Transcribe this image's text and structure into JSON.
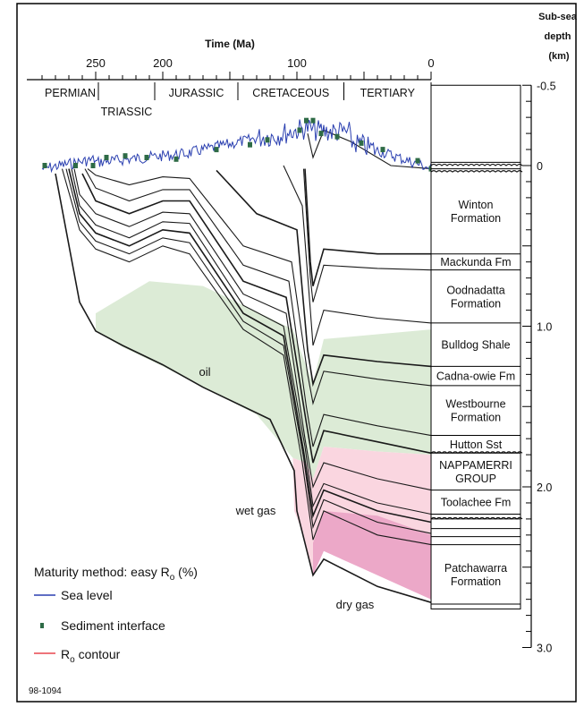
{
  "chart_data": {
    "type": "area",
    "title": "",
    "xlabel": "Time (Ma)",
    "ylabel": "Sub-sea depth (km)",
    "xlim": [
      290,
      0
    ],
    "ylim": [
      -0.5,
      3.0
    ],
    "x_ticks": [
      "250",
      "200",
      "100",
      "0"
    ],
    "x_tick_values": [
      250,
      200,
      100,
      0
    ],
    "y_ticks": [
      "-0.5",
      "0",
      "1.0",
      "2.0",
      "3.0"
    ],
    "y_tick_values": [
      -0.5,
      0,
      1.0,
      2.0,
      3.0
    ],
    "periods": [
      {
        "name": "PERMIAN",
        "start": 290,
        "end": 248
      },
      {
        "name": "TRIASSIC",
        "start": 248,
        "end": 206
      },
      {
        "name": "JURASSIC",
        "start": 206,
        "end": 144
      },
      {
        "name": "CRETACEOUS",
        "start": 144,
        "end": 65
      },
      {
        "name": "TERTIARY",
        "start": 65,
        "end": 0
      }
    ],
    "formations": [
      {
        "name": "Winton Formation",
        "top": 0.02,
        "bottom": 0.55
      },
      {
        "name": "Mackunda Fm",
        "top": 0.55,
        "bottom": 0.65
      },
      {
        "name": "Oodnadatta Formation",
        "top": 0.65,
        "bottom": 0.98
      },
      {
        "name": "Bulldog Shale",
        "top": 0.98,
        "bottom": 1.25
      },
      {
        "name": "Cadna-owie Fm",
        "top": 1.25,
        "bottom": 1.37
      },
      {
        "name": "Westbourne Formation",
        "top": 1.37,
        "bottom": 1.68
      },
      {
        "name": "Hutton Sst",
        "top": 1.68,
        "bottom": 1.79
      },
      {
        "name": "NAPPAMERRI GROUP",
        "top": 1.79,
        "bottom": 2.02
      },
      {
        "name": "Toolachee Fm",
        "top": 2.02,
        "bottom": 2.17
      },
      {
        "name": "Patchawarra Formation",
        "top": 2.36,
        "bottom": 2.73
      }
    ],
    "zones": [
      {
        "name": "oil",
        "color": "#dcebd6"
      },
      {
        "name": "wet gas",
        "color": "#fad6e0"
      },
      {
        "name": "dry gas",
        "color": "#eca8c8"
      }
    ],
    "oil_zone": {
      "top": [
        [
          250,
          0.92
        ],
        [
          210,
          0.72
        ],
        [
          170,
          0.75
        ],
        [
          120,
          0.95
        ],
        [
          103,
          1.02
        ],
        [
          93,
          1.25
        ],
        [
          88,
          1.35
        ],
        [
          80,
          1.08
        ],
        [
          40,
          1.05
        ],
        [
          0,
          1.02
        ]
      ],
      "bottom": [
        [
          250,
          1.03
        ],
        [
          230,
          1.13
        ],
        [
          200,
          1.25
        ],
        [
          170,
          1.38
        ],
        [
          130,
          1.55
        ],
        [
          103,
          1.82
        ],
        [
          93,
          1.85
        ],
        [
          88,
          1.95
        ],
        [
          80,
          1.75
        ],
        [
          40,
          1.78
        ],
        [
          0,
          1.8
        ]
      ]
    },
    "wet_gas_zone": {
      "top": [
        [
          103,
          1.82
        ],
        [
          93,
          1.85
        ],
        [
          88,
          1.95
        ],
        [
          80,
          1.75
        ],
        [
          40,
          1.78
        ],
        [
          0,
          1.8
        ]
      ],
      "bottom": [
        [
          102,
          2.15
        ],
        [
          95,
          2.3
        ],
        [
          88,
          2.55
        ],
        [
          80,
          2.35
        ],
        [
          40,
          2.3
        ],
        [
          0,
          2.3
        ]
      ]
    },
    "dry_gas_zone": {
      "top": [
        [
          88,
          2.35
        ],
        [
          80,
          2.15
        ],
        [
          40,
          2.18
        ],
        [
          0,
          2.3
        ]
      ],
      "bottom": [
        [
          88,
          2.55
        ],
        [
          80,
          2.4
        ],
        [
          40,
          2.55
        ],
        [
          0,
          2.7
        ]
      ]
    },
    "horizons": [
      [
        [
          0,
          2.72
        ],
        [
          40,
          2.62
        ],
        [
          80,
          2.45
        ],
        [
          88,
          2.55
        ],
        [
          100,
          2.15
        ],
        [
          102,
          1.9
        ],
        [
          120,
          1.58
        ],
        [
          170,
          1.38
        ],
        [
          200,
          1.24
        ],
        [
          230,
          1.12
        ],
        [
          250,
          1.03
        ],
        [
          262,
          0.85
        ],
        [
          280,
          0.05
        ]
      ],
      [
        [
          0,
          2.36
        ],
        [
          40,
          2.3
        ],
        [
          80,
          2.15
        ],
        [
          88,
          2.33
        ],
        [
          96,
          1.85
        ],
        [
          110,
          1.18
        ],
        [
          140,
          1.02
        ],
        [
          180,
          0.55
        ],
        [
          200,
          0.5
        ],
        [
          225,
          0.6
        ],
        [
          250,
          0.52
        ],
        [
          262,
          0.4
        ],
        [
          275,
          0.02
        ]
      ],
      [
        [
          0,
          2.29
        ],
        [
          40,
          2.22
        ],
        [
          80,
          2.08
        ],
        [
          88,
          2.25
        ],
        [
          95,
          1.82
        ],
        [
          110,
          1.12
        ],
        [
          140,
          0.97
        ],
        [
          180,
          0.48
        ],
        [
          200,
          0.45
        ],
        [
          225,
          0.55
        ],
        [
          250,
          0.47
        ],
        [
          262,
          0.35
        ],
        [
          272,
          0.02
        ]
      ],
      [
        [
          0,
          2.22
        ],
        [
          40,
          2.15
        ],
        [
          80,
          2.02
        ],
        [
          88,
          2.18
        ],
        [
          95,
          1.78
        ],
        [
          110,
          1.06
        ],
        [
          140,
          0.92
        ],
        [
          180,
          0.42
        ],
        [
          200,
          0.4
        ],
        [
          225,
          0.5
        ],
        [
          250,
          0.42
        ],
        [
          262,
          0.3
        ],
        [
          270,
          0.02
        ]
      ],
      [
        [
          0,
          2.17
        ],
        [
          40,
          2.1
        ],
        [
          80,
          1.98
        ],
        [
          88,
          2.12
        ],
        [
          94,
          1.75
        ],
        [
          110,
          1.0
        ],
        [
          140,
          0.87
        ],
        [
          180,
          0.36
        ],
        [
          200,
          0.35
        ],
        [
          225,
          0.45
        ],
        [
          250,
          0.37
        ],
        [
          262,
          0.25
        ],
        [
          268,
          0.02
        ]
      ],
      [
        [
          0,
          2.02
        ],
        [
          40,
          1.95
        ],
        [
          80,
          1.85
        ],
        [
          88,
          2.0
        ],
        [
          94,
          1.7
        ],
        [
          108,
          0.92
        ],
        [
          140,
          0.8
        ],
        [
          180,
          0.3
        ],
        [
          200,
          0.29
        ],
        [
          225,
          0.38
        ],
        [
          250,
          0.3
        ],
        [
          262,
          0.18
        ],
        [
          266,
          0.02
        ]
      ],
      [
        [
          0,
          1.79
        ],
        [
          40,
          1.72
        ],
        [
          80,
          1.65
        ],
        [
          88,
          1.85
        ],
        [
          93,
          1.6
        ],
        [
          108,
          0.82
        ],
        [
          140,
          0.72
        ],
        [
          180,
          0.22
        ],
        [
          200,
          0.22
        ],
        [
          225,
          0.3
        ],
        [
          250,
          0.22
        ],
        [
          260,
          0.05
        ]
      ],
      [
        [
          0,
          1.68
        ],
        [
          40,
          1.62
        ],
        [
          80,
          1.55
        ],
        [
          88,
          1.75
        ],
        [
          93,
          1.5
        ],
        [
          106,
          0.72
        ],
        [
          140,
          0.62
        ],
        [
          180,
          0.15
        ],
        [
          200,
          0.15
        ],
        [
          225,
          0.22
        ],
        [
          250,
          0.14
        ],
        [
          258,
          0.02
        ]
      ],
      [
        [
          0,
          1.37
        ],
        [
          40,
          1.33
        ],
        [
          80,
          1.28
        ],
        [
          88,
          1.48
        ],
        [
          92,
          1.3
        ],
        [
          104,
          0.6
        ],
        [
          140,
          0.5
        ],
        [
          180,
          0.08
        ],
        [
          200,
          0.07
        ],
        [
          225,
          0.12
        ],
        [
          250,
          0.06
        ],
        [
          256,
          0.02
        ]
      ],
      [
        [
          0,
          1.25
        ],
        [
          40,
          1.22
        ],
        [
          80,
          1.18
        ],
        [
          88,
          1.36
        ],
        [
          92,
          1.15
        ],
        [
          100,
          0.4
        ],
        [
          130,
          0.3
        ],
        [
          160,
          0.03
        ]
      ],
      [
        [
          0,
          0.98
        ],
        [
          40,
          0.95
        ],
        [
          80,
          0.9
        ],
        [
          88,
          1.12
        ],
        [
          90,
          0.9
        ],
        [
          96,
          0.25
        ],
        [
          110,
          0.0
        ]
      ],
      [
        [
          0,
          0.65
        ],
        [
          40,
          0.64
        ],
        [
          80,
          0.62
        ],
        [
          88,
          0.85
        ],
        [
          90,
          0.7
        ],
        [
          95,
          0.02
        ]
      ],
      [
        [
          0,
          0.55
        ],
        [
          40,
          0.55
        ],
        [
          80,
          0.52
        ],
        [
          88,
          0.75
        ],
        [
          90,
          0.6
        ],
        [
          94,
          0.02
        ]
      ],
      [
        [
          0,
          0.02
        ],
        [
          30,
          0.0
        ],
        [
          60,
          -0.15
        ],
        [
          80,
          -0.22
        ],
        [
          88,
          -0.05
        ],
        [
          92,
          -0.2
        ]
      ]
    ],
    "legend": {
      "title": "Maturity method: easy R",
      "title_sub": "o",
      "title_suffix": " (%)",
      "items": [
        {
          "label": "Sea level",
          "kind": "line",
          "color": "#2a3fb0"
        },
        {
          "label": "Sediment interface",
          "kind": "marker",
          "color": "#2e6b46"
        },
        {
          "label": "R",
          "label_sub": "o",
          "label_suffix": " contour",
          "kind": "line",
          "color": "#e8474f"
        }
      ]
    },
    "labels": {
      "oil": "oil",
      "wet_gas": "wet gas",
      "dry_gas": "dry gas"
    },
    "figure_id": "98-1094"
  }
}
